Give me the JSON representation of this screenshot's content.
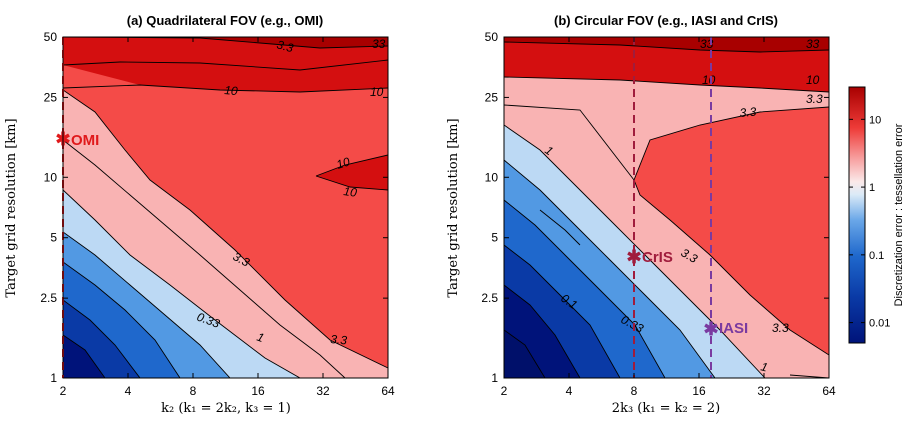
{
  "colors": {
    "levels": [
      "#00137a",
      "#0a3aa6",
      "#1f68cc",
      "#5299e3",
      "#bcd9f4",
      "#f9b3b3",
      "#f44b48",
      "#d40f10",
      "#a80000"
    ],
    "omi": "#e0191b",
    "cris": "#a01c3c",
    "iasi": "#7a3aa0"
  },
  "chart_data": [
    {
      "type": "contour",
      "title": "(a) Quadrilateral FOV (e.g., OMI)",
      "xlabel": "k₂ (k₁ = 2k₂, k₃ = 1)",
      "ylabel": "Target grid resolution [km]",
      "x_scale": "log2",
      "y_scale": "log",
      "xlim": [
        2,
        64
      ],
      "ylim": [
        1,
        50
      ],
      "x_ticks": [
        "2",
        "4",
        "8",
        "16",
        "32",
        "64"
      ],
      "y_ticks": [
        "1",
        "2.5",
        "5",
        "10",
        "25",
        "50"
      ],
      "contour_levels": [
        0.01,
        0.033,
        0.1,
        0.33,
        1,
        3.3,
        10,
        33
      ],
      "contour_labels": [
        "0.33",
        "1",
        "3.3",
        "3.3",
        "10",
        "10",
        "10",
        "3.3",
        "10",
        "33",
        "33"
      ],
      "markers": [
        {
          "label": "OMI",
          "x": 2,
          "y": 15.5,
          "guide": "vertical"
        }
      ]
    },
    {
      "type": "contour",
      "title": "(b) Circular FOV (e.g., IASI and CrIS)",
      "xlabel": "2k₃ (k₁ = k₂ = 2)",
      "ylabel": "Target grid resolution [km]",
      "x_scale": "log2",
      "y_scale": "log",
      "xlim": [
        2,
        64
      ],
      "ylim": [
        1,
        50
      ],
      "x_ticks": [
        "2",
        "4",
        "8",
        "16",
        "32",
        "64"
      ],
      "y_ticks": [
        "1",
        "2.5",
        "5",
        "10",
        "25",
        "50"
      ],
      "contour_levels": [
        0.01,
        0.033,
        0.1,
        0.33,
        1,
        3.3,
        10,
        33
      ],
      "contour_labels": [
        "0.1",
        "0.33",
        "1",
        "1",
        "3.3",
        "3.3",
        "3.3",
        "3.3",
        "10",
        "10",
        "33",
        "33"
      ],
      "markers": [
        {
          "label": "CrIS",
          "x": 8,
          "y": 4.1,
          "guide": "vertical"
        },
        {
          "label": "IASI",
          "x": 18,
          "y": 1.7,
          "guide": "vertical"
        }
      ]
    }
  ],
  "colorbar": {
    "label": "Discretization error : tessellation error",
    "scale": "log",
    "range": [
      0.005,
      30
    ],
    "ticks": [
      "10",
      "1",
      "0.1",
      "0.01"
    ],
    "tick_values": [
      10,
      1,
      0.1,
      0.01
    ]
  }
}
